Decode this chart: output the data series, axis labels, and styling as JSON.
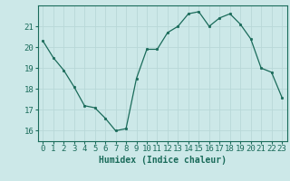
{
  "x": [
    0,
    1,
    2,
    3,
    4,
    5,
    6,
    7,
    8,
    9,
    10,
    11,
    12,
    13,
    14,
    15,
    16,
    17,
    18,
    19,
    20,
    21,
    22,
    23
  ],
  "y": [
    20.3,
    19.5,
    18.9,
    18.1,
    17.2,
    17.1,
    16.6,
    16.0,
    16.1,
    18.5,
    19.9,
    19.9,
    20.7,
    21.0,
    21.6,
    21.7,
    21.0,
    21.4,
    21.6,
    21.1,
    20.4,
    19.0,
    18.8,
    17.6
  ],
  "xlabel": "Humidex (Indice chaleur)",
  "ylim": [
    15.5,
    22.0
  ],
  "xlim": [
    -0.5,
    23.5
  ],
  "yticks": [
    16,
    17,
    18,
    19,
    20,
    21
  ],
  "xticks": [
    0,
    1,
    2,
    3,
    4,
    5,
    6,
    7,
    8,
    9,
    10,
    11,
    12,
    13,
    14,
    15,
    16,
    17,
    18,
    19,
    20,
    21,
    22,
    23
  ],
  "line_color": "#1a6b5a",
  "marker_color": "#1a6b5a",
  "bg_color": "#cce8e8",
  "grid_color": "#b8d8d8",
  "tick_label_color": "#1a6b5a",
  "xlabel_color": "#1a6b5a",
  "xlabel_fontsize": 7,
  "tick_fontsize": 6.5
}
